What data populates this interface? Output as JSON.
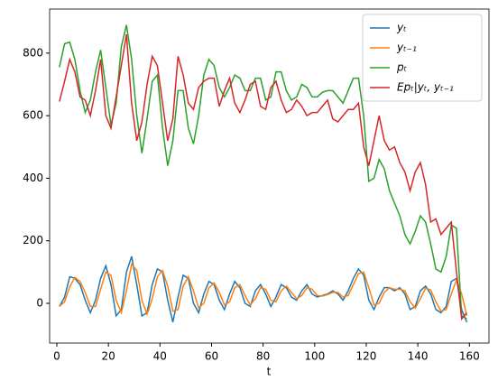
{
  "chart_data": {
    "type": "line",
    "xlabel": "t",
    "x": [
      1,
      3,
      5,
      7,
      9,
      11,
      13,
      15,
      17,
      19,
      21,
      23,
      25,
      27,
      29,
      31,
      33,
      35,
      37,
      39,
      41,
      43,
      45,
      47,
      49,
      51,
      53,
      55,
      57,
      59,
      61,
      63,
      65,
      67,
      69,
      71,
      73,
      75,
      77,
      79,
      81,
      83,
      85,
      87,
      89,
      91,
      93,
      95,
      97,
      99,
      101,
      103,
      105,
      107,
      109,
      111,
      113,
      115,
      117,
      119,
      121,
      123,
      125,
      127,
      129,
      131,
      133,
      135,
      137,
      139,
      141,
      143,
      145,
      147,
      149,
      151,
      153,
      155,
      157,
      159
    ],
    "series": [
      {
        "name": "yₜ",
        "color": "#1f77b4",
        "values": [
          -10,
          20,
          85,
          80,
          60,
          10,
          -30,
          10,
          80,
          120,
          60,
          -40,
          -20,
          100,
          150,
          60,
          -40,
          -30,
          60,
          110,
          100,
          10,
          -60,
          20,
          90,
          80,
          0,
          -30,
          30,
          70,
          60,
          10,
          -20,
          30,
          70,
          50,
          0,
          -10,
          40,
          60,
          30,
          -10,
          20,
          60,
          50,
          20,
          10,
          40,
          60,
          30,
          20,
          25,
          30,
          40,
          30,
          10,
          40,
          80,
          110,
          90,
          10,
          -20,
          20,
          50,
          50,
          40,
          50,
          30,
          -20,
          -10,
          40,
          55,
          30,
          -20,
          -30,
          -10,
          70,
          80,
          -20,
          -60
        ]
      },
      {
        "name": "yₜ₋₁",
        "color": "#ff7f0e",
        "values": [
          -10,
          5,
          53,
          83,
          70,
          35,
          -10,
          -10,
          45,
          100,
          90,
          10,
          -30,
          40,
          125,
          105,
          10,
          -35,
          15,
          85,
          105,
          55,
          -25,
          -20,
          55,
          85,
          40,
          -15,
          0,
          50,
          65,
          35,
          -5,
          5,
          50,
          60,
          25,
          -5,
          15,
          50,
          45,
          10,
          5,
          40,
          55,
          35,
          15,
          25,
          50,
          45,
          25,
          23,
          28,
          35,
          35,
          20,
          25,
          60,
          95,
          100,
          50,
          -5,
          0,
          35,
          50,
          45,
          45,
          40,
          5,
          -15,
          15,
          48,
          43,
          5,
          -25,
          -20,
          30,
          75,
          30,
          -40
        ]
      },
      {
        "name": "pₜ",
        "color": "#2ca02c",
        "values": [
          755,
          830,
          835,
          780,
          680,
          610,
          650,
          740,
          810,
          690,
          570,
          640,
          820,
          890,
          780,
          600,
          480,
          590,
          710,
          730,
          560,
          440,
          520,
          680,
          680,
          560,
          510,
          600,
          730,
          780,
          760,
          690,
          660,
          690,
          730,
          720,
          680,
          680,
          720,
          720,
          650,
          660,
          740,
          740,
          680,
          650,
          660,
          700,
          690,
          660,
          660,
          675,
          680,
          680,
          660,
          640,
          680,
          720,
          720,
          600,
          390,
          400,
          460,
          430,
          360,
          320,
          280,
          220,
          190,
          230,
          280,
          260,
          190,
          110,
          100,
          150,
          250,
          240,
          -40,
          -50
        ]
      },
      {
        "name": "Epₜ|yₜ, yₜ₋₁",
        "color": "#d62728",
        "values": [
          645,
          710,
          780,
          740,
          660,
          650,
          600,
          680,
          780,
          600,
          560,
          660,
          760,
          860,
          640,
          520,
          580,
          700,
          790,
          760,
          640,
          520,
          590,
          790,
          730,
          640,
          620,
          690,
          710,
          720,
          720,
          630,
          680,
          720,
          640,
          610,
          650,
          700,
          710,
          630,
          620,
          690,
          710,
          650,
          610,
          620,
          650,
          630,
          600,
          610,
          610,
          630,
          650,
          590,
          580,
          600,
          620,
          620,
          640,
          500,
          440,
          520,
          600,
          520,
          490,
          500,
          450,
          420,
          360,
          420,
          450,
          380,
          260,
          270,
          220,
          240,
          260,
          100,
          -50,
          -30
        ]
      }
    ],
    "xlim": [
      -2.8,
      167.6
    ],
    "ylim": [
      -127,
      941
    ],
    "xticks": [
      0,
      20,
      40,
      60,
      80,
      100,
      120,
      140,
      160
    ],
    "yticks": [
      0,
      200,
      400,
      600,
      800
    ],
    "legend": "upper right"
  }
}
